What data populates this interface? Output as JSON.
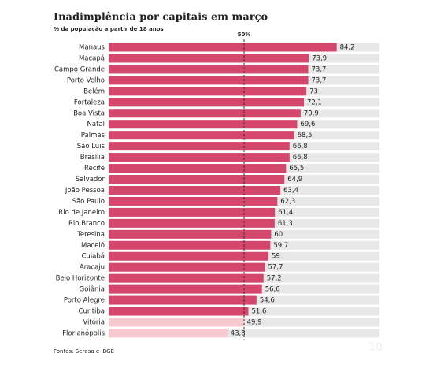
{
  "chart_data": {
    "type": "hbar",
    "title": "Inadimplência por capitais em março",
    "subtitle": "% da população a partir de 18 anos",
    "source": "Fontes: Serasa e IBGE",
    "logo": "10",
    "categories": [
      "Manaus",
      "Macapá",
      "Campo Grande",
      "Porto Velho",
      "Belém",
      "Fortaleza",
      "Boa Vista",
      "Natal",
      "Palmas",
      "São Luis",
      "Brasília",
      "Recife",
      "Salvador",
      "João Pessoa",
      "São Paulo",
      "Rio de Janeiro",
      "Rio Branco",
      "Teresina",
      "Maceió",
      "Cuiabá",
      "Aracaju",
      "Belo Horizonte",
      "Goiânia",
      "Porto Alegre",
      "Curitiba",
      "Vitória",
      "Florianópolis"
    ],
    "values": [
      84.2,
      73.9,
      73.7,
      73.7,
      73,
      72.1,
      70.9,
      69.6,
      68.5,
      66.8,
      66.8,
      65.5,
      64.9,
      63.4,
      62.3,
      61.4,
      61.3,
      60,
      59.7,
      59,
      57.7,
      57.2,
      56.6,
      54.6,
      51.6,
      49.9,
      43.8
    ],
    "value_labels": [
      "84,2",
      "73,9",
      "73,7",
      "73,7",
      "73",
      "72,1",
      "70,9",
      "69,6",
      "68,5",
      "66,8",
      "66,8",
      "65,5",
      "64,9",
      "63,4",
      "62,3",
      "61,4",
      "61,3",
      "60",
      "59,7",
      "59",
      "57,7",
      "57,2",
      "56,6",
      "54,6",
      "51,6",
      "49,9",
      "43,8"
    ],
    "xlim": [
      0,
      100
    ],
    "color": "#d4466b",
    "below_reference_color": "#f8c8d1",
    "track_color": "#e8e8e8",
    "reference_line": {
      "value": 50,
      "label": "50%"
    }
  }
}
